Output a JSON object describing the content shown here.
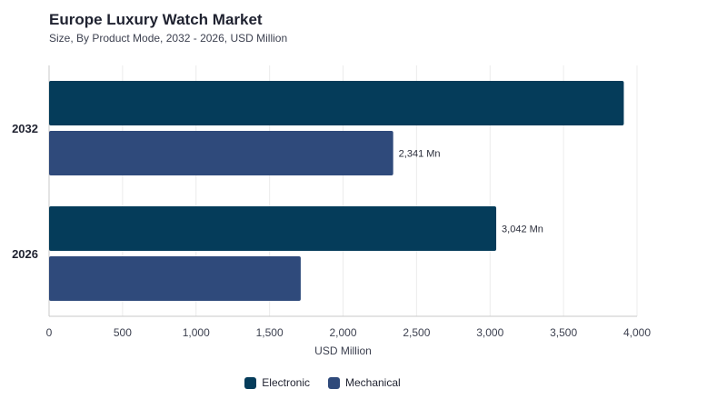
{
  "chart_data": {
    "type": "bar",
    "orientation": "horizontal",
    "title": "Europe Luxury Watch Market",
    "subtitle": "Size, By Product Mode, 2032 - 2026, USD Million",
    "xlabel": "USD Million",
    "ylabel": "",
    "xlim": [
      0,
      4000
    ],
    "xticks": [
      0,
      500,
      1000,
      1500,
      2000,
      2500,
      3000,
      3500,
      4000
    ],
    "xtick_labels": [
      "0",
      "500",
      "1,000",
      "1,500",
      "2,000",
      "2,500",
      "3,000",
      "3,500",
      "4,000"
    ],
    "categories": [
      "2032",
      "2026"
    ],
    "series": [
      {
        "name": "Electronic",
        "color": "#053c5a",
        "values": [
          3910,
          3042
        ],
        "data_labels": [
          "",
          "3,042 Mn"
        ]
      },
      {
        "name": "Mechanical",
        "color": "#2f4a7b",
        "values": [
          2341,
          1712
        ],
        "data_labels": [
          "2,341 Mn",
          ""
        ]
      }
    ],
    "grid": true,
    "legend_position": "bottom-center"
  }
}
